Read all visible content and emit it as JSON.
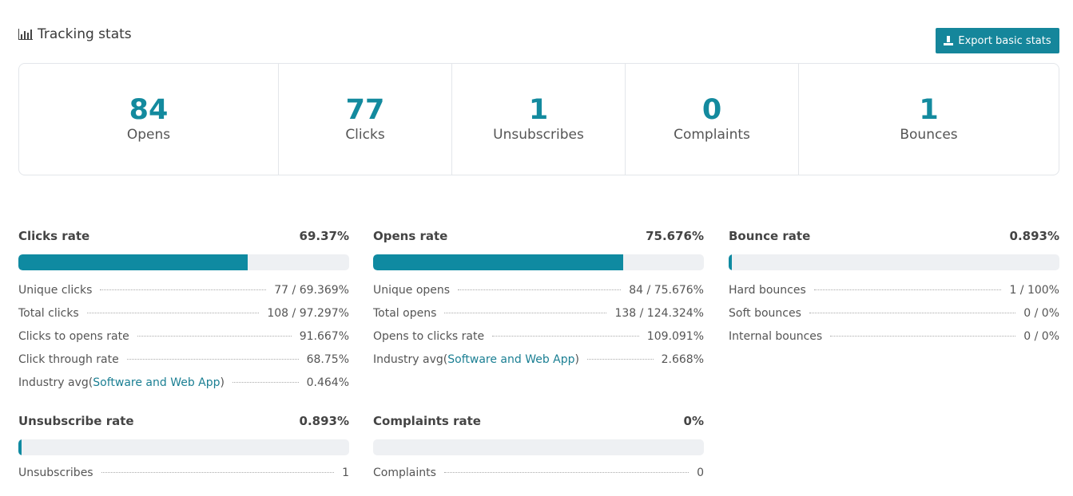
{
  "header": {
    "title": "Tracking stats",
    "export_label": "Export basic stats"
  },
  "summary": [
    {
      "value": "84",
      "label": "Opens"
    },
    {
      "value": "77",
      "label": "Clicks"
    },
    {
      "value": "1",
      "label": "Unsubscribes"
    },
    {
      "value": "0",
      "label": "Complaints"
    },
    {
      "value": "1",
      "label": "Bounces"
    }
  ],
  "clicks_rate": {
    "title": "Clicks rate",
    "value": "69.37%",
    "progress": 69.37,
    "rows": [
      {
        "label": "Unique clicks",
        "value": "77 / 69.369%"
      },
      {
        "label": "Total clicks",
        "value": "108 / 97.297%"
      },
      {
        "label": "Clicks to opens rate",
        "value": "91.667%"
      },
      {
        "label": "Click through rate",
        "value": "68.75%"
      },
      {
        "label_prefix": "Industry avg(",
        "link": "Software and Web App",
        "label_suffix": ")",
        "value": "0.464%"
      }
    ]
  },
  "opens_rate": {
    "title": "Opens rate",
    "value": "75.676%",
    "progress": 75.676,
    "rows": [
      {
        "label": "Unique opens",
        "value": "84 / 75.676%"
      },
      {
        "label": "Total opens",
        "value": "138 / 124.324%"
      },
      {
        "label": "Opens to clicks rate",
        "value": "109.091%"
      },
      {
        "label_prefix": "Industry avg(",
        "link": "Software and Web App",
        "label_suffix": ")",
        "value": "2.668%"
      }
    ]
  },
  "bounce_rate": {
    "title": "Bounce rate",
    "value": "0.893%",
    "progress": 0.893,
    "rows": [
      {
        "label": "Hard bounces",
        "value": "1 / 100%"
      },
      {
        "label": "Soft bounces",
        "value": "0 / 0%"
      },
      {
        "label": "Internal bounces",
        "value": "0 / 0%"
      }
    ]
  },
  "unsubscribe_rate": {
    "title": "Unsubscribe rate",
    "value": "0.893%",
    "progress": 0.893,
    "rows": [
      {
        "label": "Unsubscribes",
        "value": "1"
      }
    ]
  },
  "complaints_rate": {
    "title": "Complaints rate",
    "value": "0%",
    "progress": 0,
    "rows": [
      {
        "label": "Complaints",
        "value": "0"
      }
    ]
  },
  "colors": {
    "accent": "#138a9e",
    "bar_fill": "#0f8aa1",
    "bar_track": "#eef0f3"
  }
}
